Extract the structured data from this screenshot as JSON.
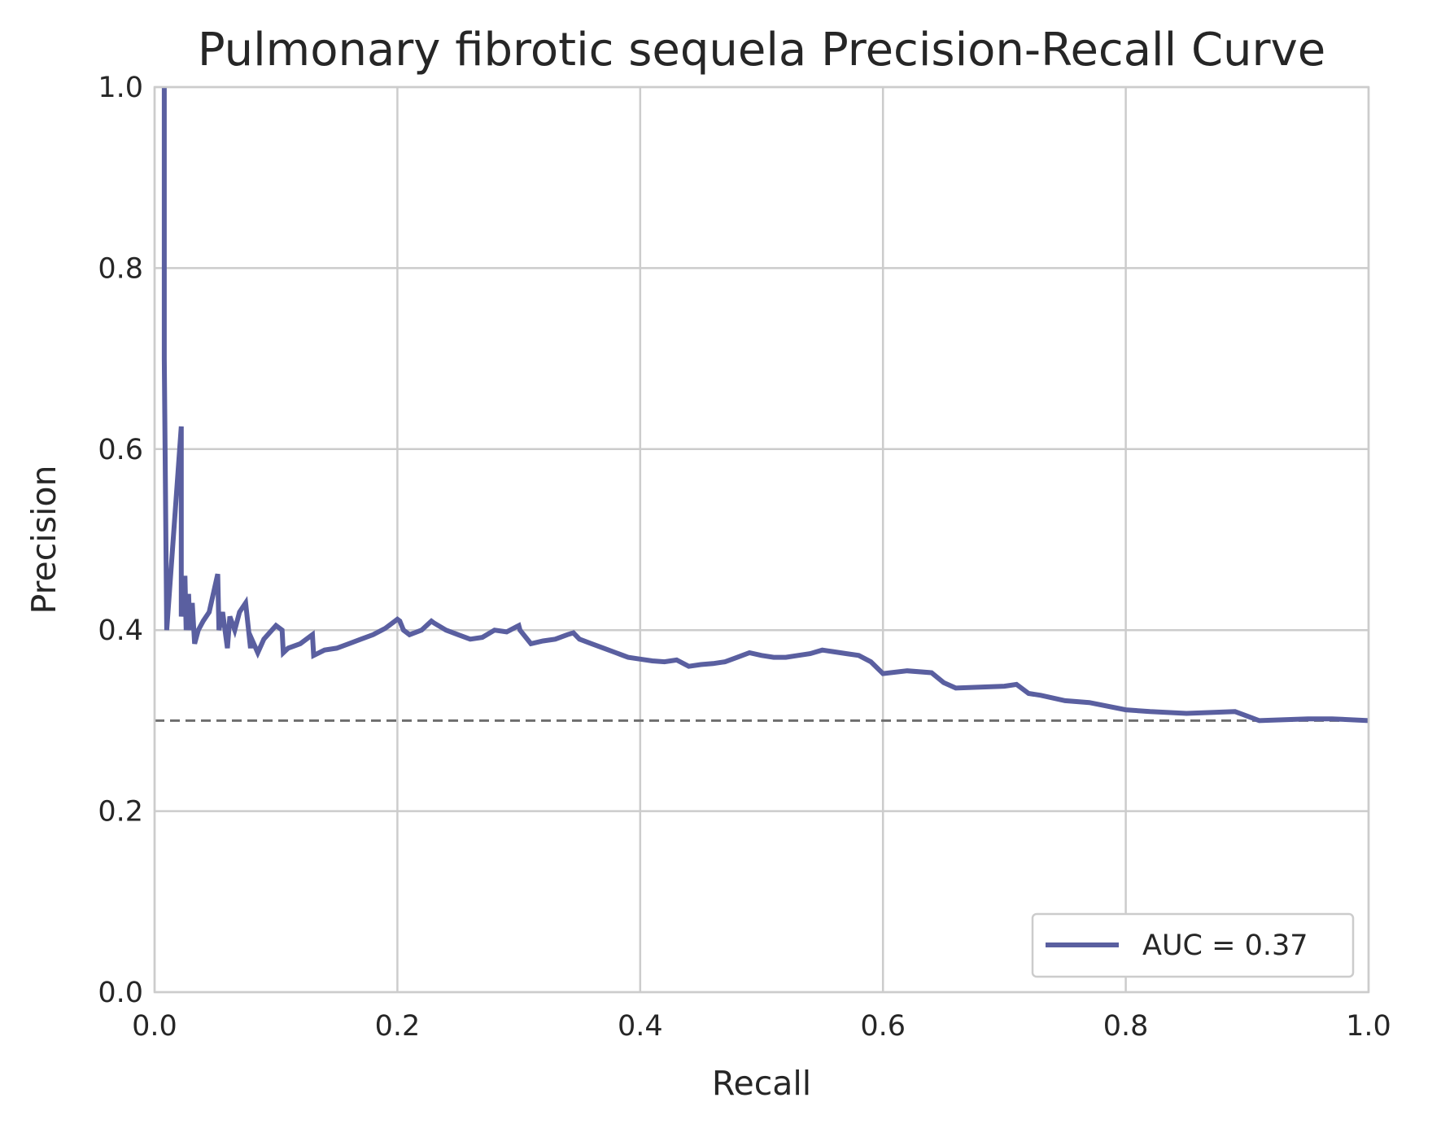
{
  "chart_data": {
    "type": "line",
    "title": "Pulmonary fibrotic sequela Precision-Recall Curve",
    "xlabel": "Recall",
    "ylabel": "Precision",
    "xlim": [
      0.0,
      1.0
    ],
    "ylim": [
      0.0,
      1.0
    ],
    "xticks": [
      "0.0",
      "0.2",
      "0.4",
      "0.6",
      "0.8",
      "1.0"
    ],
    "yticks": [
      "0.0",
      "0.2",
      "0.4",
      "0.6",
      "0.8",
      "1.0"
    ],
    "grid": true,
    "legend_position": "lower-right",
    "series": [
      {
        "name": "AUC = 0.37",
        "color": "#5a5fa0",
        "x": [
          0.008,
          0.008,
          0.01,
          0.022,
          0.022,
          0.025,
          0.026,
          0.028,
          0.029,
          0.031,
          0.033,
          0.036,
          0.04,
          0.045,
          0.052,
          0.053,
          0.056,
          0.06,
          0.062,
          0.066,
          0.07,
          0.075,
          0.079,
          0.08,
          0.085,
          0.09,
          0.1,
          0.105,
          0.106,
          0.11,
          0.12,
          0.13,
          0.131,
          0.14,
          0.15,
          0.16,
          0.17,
          0.18,
          0.19,
          0.2,
          0.202,
          0.205,
          0.21,
          0.22,
          0.228,
          0.23,
          0.24,
          0.25,
          0.26,
          0.27,
          0.28,
          0.29,
          0.3,
          0.301,
          0.31,
          0.32,
          0.33,
          0.34,
          0.345,
          0.35,
          0.36,
          0.37,
          0.38,
          0.39,
          0.4,
          0.41,
          0.42,
          0.43,
          0.44,
          0.45,
          0.46,
          0.47,
          0.48,
          0.49,
          0.5,
          0.51,
          0.52,
          0.53,
          0.54,
          0.55,
          0.56,
          0.57,
          0.58,
          0.59,
          0.6,
          0.62,
          0.64,
          0.65,
          0.66,
          0.7,
          0.71,
          0.72,
          0.73,
          0.75,
          0.77,
          0.8,
          0.82,
          0.85,
          0.89,
          0.9,
          0.91,
          0.95,
          0.97,
          1.0
        ],
        "y": [
          1.0,
          0.7,
          0.4,
          0.625,
          0.415,
          0.46,
          0.4,
          0.44,
          0.4,
          0.43,
          0.385,
          0.4,
          0.41,
          0.42,
          0.462,
          0.4,
          0.42,
          0.38,
          0.415,
          0.4,
          0.42,
          0.43,
          0.38,
          0.39,
          0.375,
          0.39,
          0.405,
          0.4,
          0.375,
          0.38,
          0.385,
          0.395,
          0.372,
          0.378,
          0.38,
          0.385,
          0.39,
          0.395,
          0.402,
          0.412,
          0.41,
          0.4,
          0.395,
          0.4,
          0.41,
          0.408,
          0.4,
          0.395,
          0.39,
          0.392,
          0.4,
          0.398,
          0.405,
          0.4,
          0.385,
          0.388,
          0.39,
          0.395,
          0.397,
          0.39,
          0.385,
          0.38,
          0.375,
          0.37,
          0.368,
          0.366,
          0.365,
          0.367,
          0.36,
          0.362,
          0.363,
          0.365,
          0.37,
          0.375,
          0.372,
          0.37,
          0.37,
          0.372,
          0.374,
          0.378,
          0.376,
          0.374,
          0.372,
          0.365,
          0.352,
          0.355,
          0.353,
          0.342,
          0.336,
          0.338,
          0.34,
          0.33,
          0.328,
          0.322,
          0.32,
          0.312,
          0.31,
          0.308,
          0.31,
          0.305,
          0.3,
          0.302,
          0.302,
          0.3
        ]
      }
    ],
    "baseline": {
      "y": 0.3,
      "style": "dashed",
      "color": "#6e6e6e"
    }
  }
}
